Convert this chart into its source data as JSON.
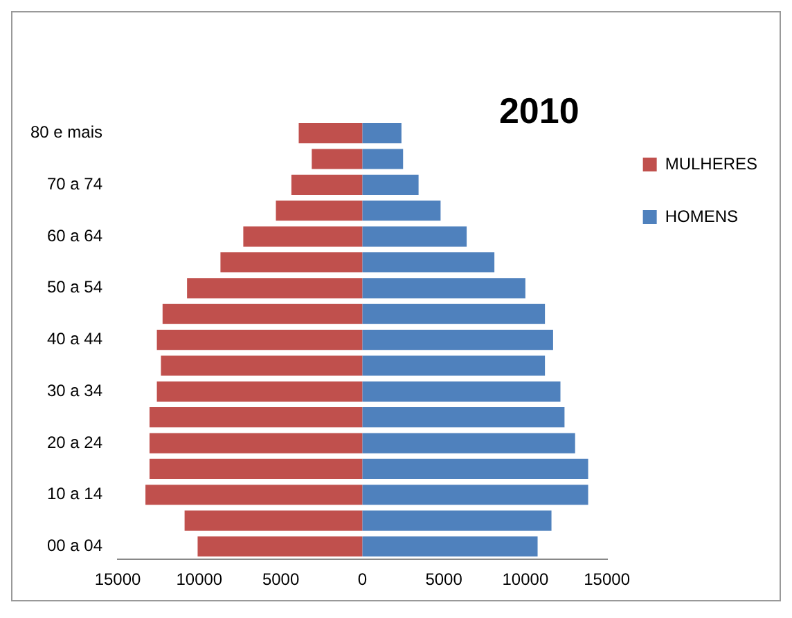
{
  "chart_data": {
    "type": "bar",
    "orientation": "horizontal",
    "stacked": true,
    "title": "2010",
    "categories": [
      "80 e mais",
      null,
      "70 a 74",
      null,
      "60 a 64",
      null,
      "50 a 54",
      null,
      "40 a 44",
      null,
      "30 a 34",
      null,
      "20 a 24",
      null,
      "10 a 14",
      null,
      "00 a 04"
    ],
    "series": [
      {
        "name": "MULHERES",
        "color": "#c0504d",
        "values": [
          -3900,
          -3100,
          -4350,
          -5300,
          -7300,
          -8700,
          -10750,
          -12250,
          -12600,
          -12350,
          -12600,
          -13050,
          -13050,
          -13050,
          -13300,
          -10900,
          -10100
        ]
      },
      {
        "name": "HOMENS",
        "color": "#4f81bd",
        "values": [
          2400,
          2500,
          3450,
          4800,
          6400,
          8100,
          10000,
          11200,
          11700,
          11200,
          12150,
          12400,
          13050,
          13850,
          13850,
          11600,
          10750
        ]
      }
    ],
    "xlim": [
      -15000,
      15000
    ],
    "xticks": [
      {
        "value": -15000,
        "label": "15000"
      },
      {
        "value": -10000,
        "label": "10000"
      },
      {
        "value": -5000,
        "label": "5000"
      },
      0,
      5000,
      10000,
      15000
    ],
    "grid": false,
    "legend": "top right"
  }
}
